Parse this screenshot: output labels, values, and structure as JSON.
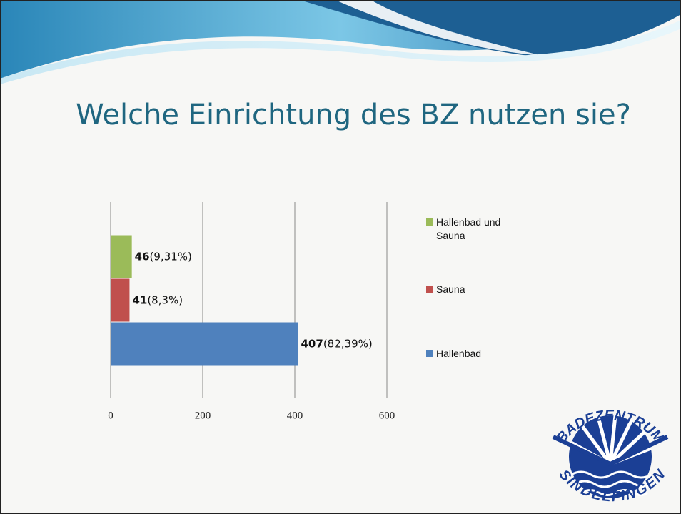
{
  "chart_data": {
    "type": "bar",
    "orientation": "horizontal",
    "title": "Welche Einrichtung des BZ nutzen sie?",
    "categories": [
      "Hallenbad",
      "Sauna",
      "Hallenbad und Sauna"
    ],
    "values": [
      407,
      41,
      46
    ],
    "share_labels": [
      "(82,39%)",
      "(8,3%)",
      "(9,31%)"
    ],
    "colors": [
      "#4f81bd",
      "#c0504d",
      "#9bbb59"
    ],
    "xlim": [
      0,
      600
    ],
    "xticks": [
      0,
      200,
      400,
      600
    ],
    "grid": true,
    "legend": "right"
  },
  "logo": {
    "top": "BADEZENTRUM",
    "bottom": "SINDELFINGEN"
  }
}
